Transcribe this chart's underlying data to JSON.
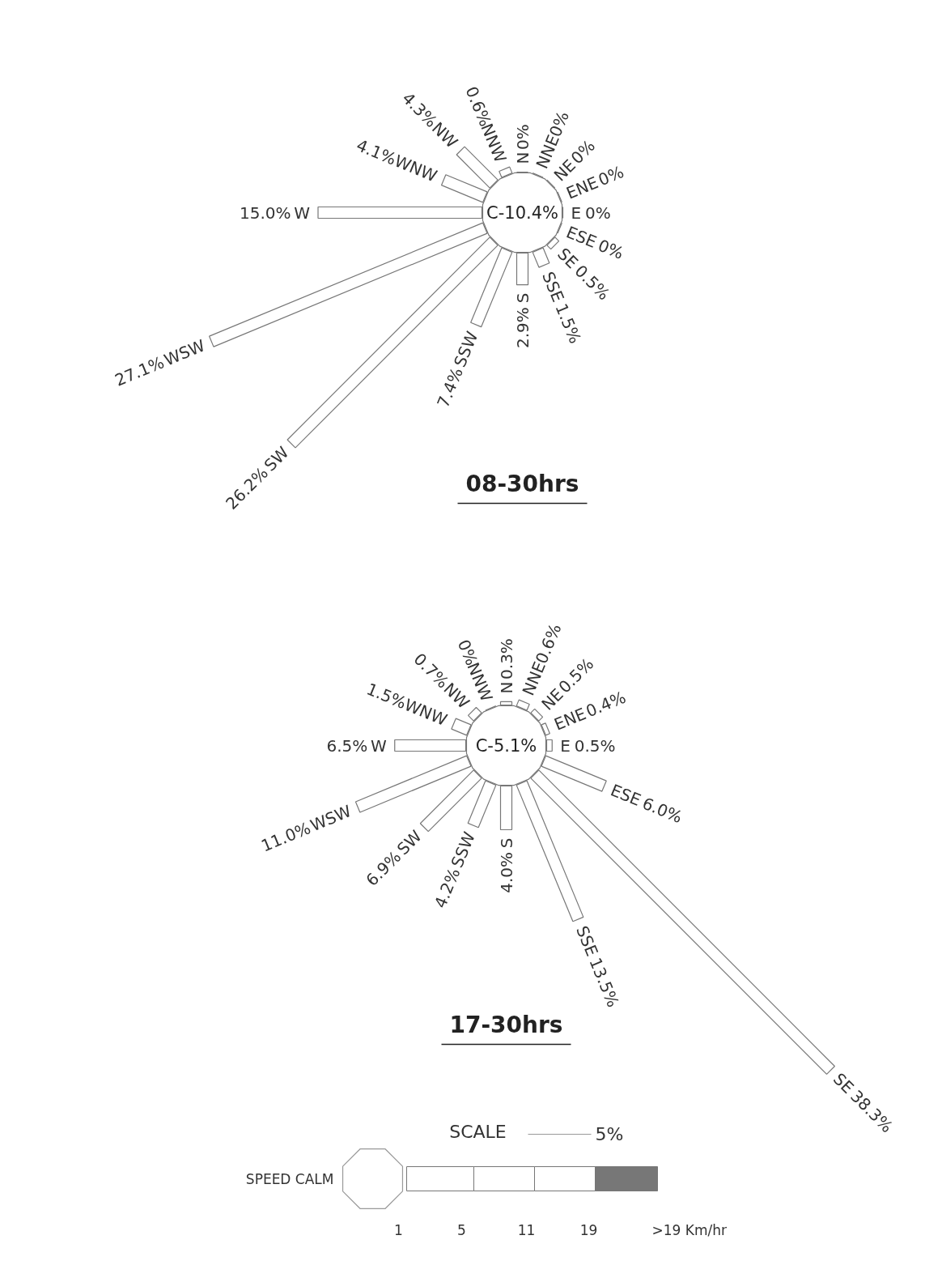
{
  "chart_data": [
    {
      "type": "other",
      "title": "08-30hrs",
      "categories": [
        "N",
        "NNE",
        "NE",
        "ENE",
        "E",
        "ESE",
        "SE",
        "SSE",
        "S",
        "SSW",
        "SW",
        "WSW",
        "W",
        "WNW",
        "NW",
        "NNW"
      ],
      "values": [
        0,
        0,
        0,
        0,
        0,
        0,
        0.5,
        1.5,
        2.9,
        7.4,
        26.2,
        27.1,
        15.0,
        4.1,
        4.3,
        0.6
      ],
      "value_labels": [
        "0%",
        "0%",
        "0%",
        "0%",
        "0%",
        "0%",
        "0.5%",
        "1.5%",
        "2.9%",
        "7.4%",
        "26.2%",
        "27.1%",
        "15.0%",
        "4.1%",
        "4.3%",
        "0.6%"
      ],
      "annotations": [
        "C-10.4%"
      ]
    },
    {
      "type": "other",
      "title": "17-30hrs",
      "categories": [
        "N",
        "NNE",
        "NE",
        "ENE",
        "E",
        "ESE",
        "SE",
        "SSE",
        "S",
        "SSW",
        "SW",
        "WSW",
        "W",
        "WNW",
        "NW",
        "NNW"
      ],
      "values": [
        0.3,
        0.6,
        0.5,
        0.4,
        0.5,
        6.0,
        38.3,
        13.5,
        4.0,
        4.2,
        6.9,
        11.0,
        6.5,
        1.5,
        0.7,
        0
      ],
      "value_labels": [
        "0.3%",
        "0.6%",
        "0.5%",
        "0.4%",
        "0.5%",
        "6.0%",
        "38.3%",
        "13.5%",
        "4.0%",
        "4.2%",
        "6.9%",
        "11.0%",
        "6.5%",
        "1.5%",
        "0.7%",
        "0%"
      ],
      "annotations": [
        "C-5.1%",
        "SCALE",
        "5%",
        "SPEED CALM",
        "1",
        "5",
        "11",
        "19",
        ">19 Km/hr"
      ]
    }
  ]
}
